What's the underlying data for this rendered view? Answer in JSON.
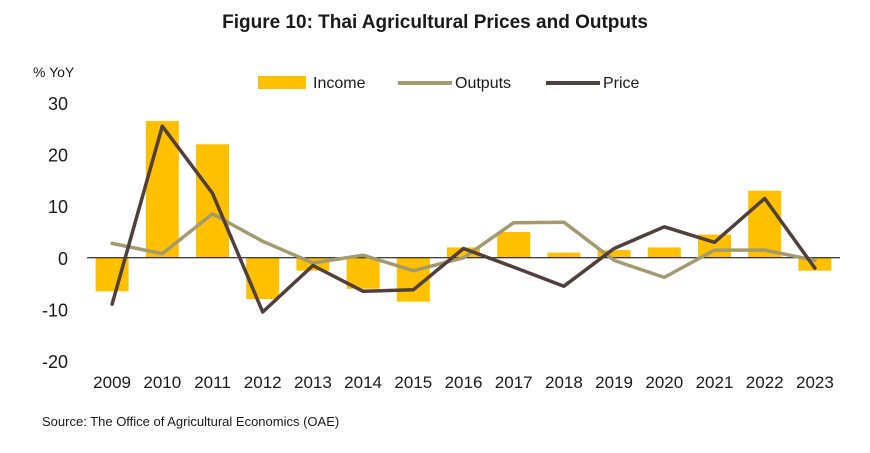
{
  "figure": {
    "title": "Figure 10: Thai Agricultural Prices and Outputs",
    "source": "Source: The Office of Agricultural Economics (OAE)"
  },
  "colors": {
    "income": "#FFC000",
    "outputs": "#A49A6F",
    "price": "#503F3C",
    "zero_line": "#000000"
  },
  "chart_data": {
    "type": "bar",
    "title": "Figure 10: Thai Agricultural Prices and Outputs",
    "ylabel": "% YoY",
    "xlabel": "",
    "ylim": [
      -20,
      30
    ],
    "yticks": [
      30,
      20,
      10,
      0,
      -10,
      -20
    ],
    "grid": false,
    "legend_position": "top-center",
    "categories": [
      "2009",
      "2010",
      "2011",
      "2012",
      "2013",
      "2014",
      "2015",
      "2016",
      "2017",
      "2018",
      "2019",
      "2020",
      "2021",
      "2022",
      "2023"
    ],
    "series": [
      {
        "name": "Income",
        "type": "bar",
        "values": [
          -6.5,
          26.5,
          22.0,
          -8.0,
          -2.5,
          -6.0,
          -8.5,
          2.0,
          5.0,
          1.0,
          1.5,
          2.0,
          4.5,
          13.0,
          -2.5
        ]
      },
      {
        "name": "Outputs",
        "type": "line",
        "values": [
          2.8,
          0.8,
          8.5,
          3.2,
          -1.0,
          0.5,
          -2.5,
          0.0,
          6.8,
          6.9,
          -0.5,
          -3.8,
          1.5,
          1.5,
          -0.5
        ]
      },
      {
        "name": "Price",
        "type": "line",
        "values": [
          -9.0,
          25.5,
          12.5,
          -10.5,
          -1.5,
          -6.5,
          -6.2,
          1.8,
          -1.8,
          -5.5,
          1.8,
          6.0,
          3.0,
          11.5,
          -2.0
        ]
      }
    ]
  }
}
